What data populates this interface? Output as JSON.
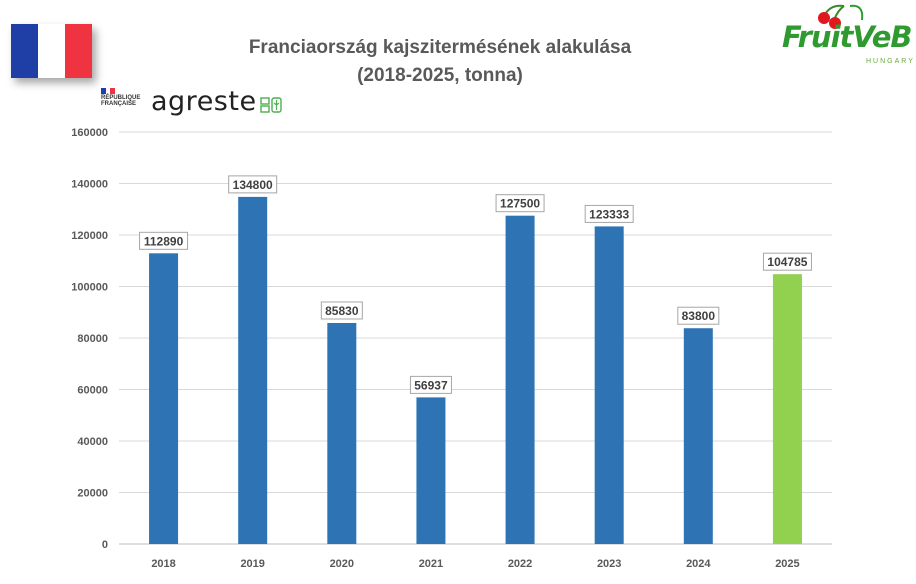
{
  "flag": {
    "colors": [
      "#1f3fa6",
      "#ffffff",
      "#ef3340"
    ]
  },
  "title_line1": "Franciaország kajszitermésének alakulása",
  "title_line2": "(2018-2025, tonna)",
  "logos": {
    "republique": "RÉPUBLIQUE FRANÇAISE",
    "agreste": "agreste",
    "fruitveb": "FruitVeB",
    "fruitveb_sub": "HUNGARY"
  },
  "chart_data": {
    "type": "bar",
    "categories": [
      "2018",
      "2019",
      "2020",
      "2021",
      "2022",
      "2023",
      "2024",
      "2025"
    ],
    "values": [
      112890,
      134800,
      85830,
      56937,
      127500,
      123333,
      83800,
      104785
    ],
    "data_labels": [
      "112890",
      "134800",
      "85830",
      "56937",
      "127500",
      "123333",
      "83800",
      "104785"
    ],
    "colors": [
      "#2e74b5",
      "#2e74b5",
      "#2e74b5",
      "#2e74b5",
      "#2e74b5",
      "#2e74b5",
      "#2e74b5",
      "#92d050"
    ],
    "ylim": [
      0,
      160000
    ],
    "y_ticks": [
      "0",
      "20000",
      "40000",
      "60000",
      "80000",
      "100000",
      "120000",
      "140000",
      "160000"
    ],
    "grid": true
  }
}
